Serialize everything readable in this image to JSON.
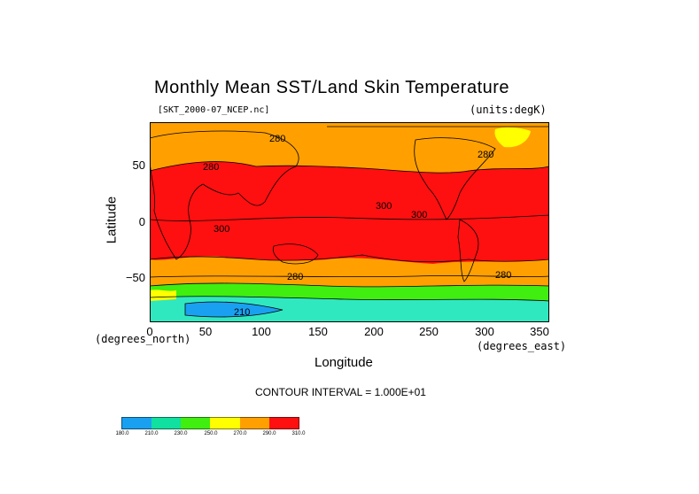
{
  "title": "Monthly Mean SST/Land Skin Temperature",
  "file_label": "[SKT_2000-07_NCEP.nc]",
  "units_label": "(units:degK)",
  "y_axis": {
    "label": "Latitude",
    "ticks": [
      "50",
      "0",
      "−50"
    ],
    "units": "(degrees_north)"
  },
  "x_axis": {
    "label": "Longitude",
    "ticks": [
      "0",
      "50",
      "100",
      "150",
      "200",
      "250",
      "300",
      "350"
    ],
    "units": "(degrees_east)"
  },
  "contour_interval": "CONTOUR INTERVAL = 1.000E+01",
  "contour_labels": [
    "280",
    "280",
    "280",
    "280",
    "300",
    "300",
    "300",
    "280",
    "210"
  ],
  "colorbar": {
    "levels": [
      "180.0",
      "210.0",
      "230.0",
      "250.0",
      "270.0",
      "290.0",
      "310.0"
    ],
    "colors": [
      "#1aa0f0",
      "#10e0a0",
      "#30e8c0",
      "#40ee10",
      "#ffff00",
      "#ffa000",
      "#ff1010"
    ]
  },
  "colors": {
    "warm": "#ff1010",
    "mid": "#ffa000",
    "cool": "#ffff00",
    "green": "#40ee10",
    "teal": "#30e8c0",
    "blue": "#1aa0f0"
  }
}
